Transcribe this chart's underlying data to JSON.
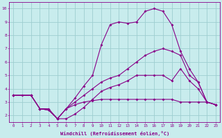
{
  "xlabel": "Windchill (Refroidissement éolien,°C)",
  "bg_color": "#c8eced",
  "grid_color": "#9ecdd0",
  "line_color": "#880088",
  "xlim_min": -0.5,
  "xlim_max": 23.5,
  "ylim_min": 1.5,
  "ylim_max": 10.5,
  "xticks": [
    0,
    1,
    2,
    3,
    4,
    5,
    6,
    7,
    8,
    9,
    10,
    11,
    12,
    13,
    14,
    15,
    16,
    17,
    18,
    19,
    20,
    21,
    22,
    23
  ],
  "yticks": [
    2,
    3,
    4,
    5,
    6,
    7,
    8,
    9,
    10
  ],
  "line1_x": [
    0,
    1,
    2,
    3,
    4,
    5,
    6,
    7,
    8,
    9,
    10,
    11,
    12,
    13,
    14,
    15,
    16,
    17,
    18,
    19,
    20,
    21,
    22,
    23
  ],
  "line1_y": [
    3.5,
    3.5,
    3.5,
    2.5,
    2.5,
    1.75,
    1.75,
    2.1,
    2.6,
    3.2,
    3.8,
    4.1,
    4.3,
    4.6,
    5.0,
    5.0,
    5.0,
    5.0,
    4.6,
    5.5,
    4.6,
    4.0,
    3.0,
    2.8
  ],
  "line2_x": [
    0,
    2,
    3,
    4,
    5,
    6,
    7,
    8,
    9,
    10,
    11,
    12,
    13,
    14,
    15,
    16,
    17,
    18,
    19,
    20,
    21,
    22,
    23
  ],
  "line2_y": [
    3.5,
    3.5,
    2.5,
    2.4,
    1.75,
    2.5,
    3.3,
    4.2,
    5.0,
    7.3,
    8.8,
    9.0,
    8.9,
    9.0,
    9.8,
    10.0,
    9.8,
    8.8,
    6.8,
    5.5,
    4.5,
    3.0,
    2.8
  ],
  "line3_x": [
    0,
    2,
    3,
    4,
    5,
    6,
    7,
    8,
    9,
    10,
    11,
    12,
    13,
    14,
    15,
    16,
    17,
    18,
    19,
    20,
    21,
    22,
    23
  ],
  "line3_y": [
    3.5,
    3.5,
    2.5,
    2.4,
    1.75,
    2.5,
    3.0,
    3.5,
    4.0,
    4.5,
    4.8,
    5.0,
    5.5,
    6.0,
    6.5,
    6.8,
    7.0,
    6.8,
    6.5,
    5.0,
    4.5,
    3.0,
    2.8
  ],
  "line4_x": [
    0,
    2,
    3,
    4,
    5,
    6,
    7,
    8,
    9,
    10,
    11,
    12,
    13,
    14,
    15,
    16,
    17,
    18,
    19,
    20,
    21,
    22,
    23
  ],
  "line4_y": [
    3.5,
    3.5,
    2.5,
    2.4,
    1.75,
    2.5,
    2.8,
    3.0,
    3.1,
    3.2,
    3.2,
    3.2,
    3.2,
    3.2,
    3.2,
    3.2,
    3.2,
    3.2,
    3.0,
    3.0,
    3.0,
    3.0,
    2.8
  ]
}
